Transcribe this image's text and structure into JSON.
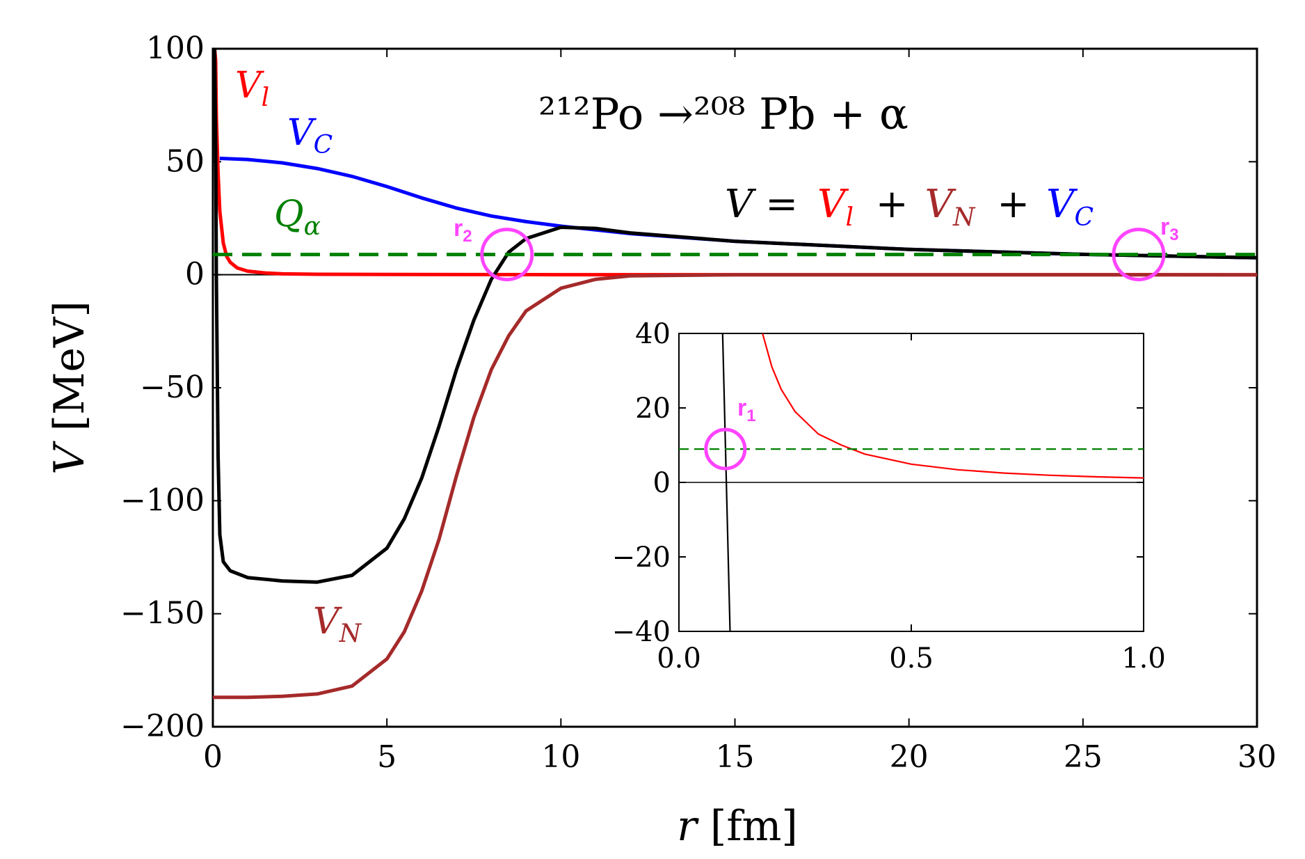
{
  "chart_data": {
    "type": "line",
    "title": "²¹²Po →²⁰⁸ Pb + α",
    "xlabel": "r [fm]",
    "ylabel": "V [MeV]",
    "xlim": [
      0,
      30
    ],
    "ylim": [
      -200,
      100
    ],
    "xticks": [
      0,
      5,
      10,
      15,
      20,
      25,
      30
    ],
    "yticks": [
      100,
      50,
      0,
      -50,
      -100,
      -150,
      -200
    ],
    "xtick_labels": [
      "0",
      "5",
      "10",
      "15",
      "20",
      "25",
      "30"
    ],
    "ytick_labels": [
      "100",
      "50",
      "0",
      "−50",
      "−100",
      "−150",
      "−200"
    ],
    "equation": {
      "lhs": "V =",
      "terms": [
        {
          "symbol": "V",
          "sub": "l",
          "color": "#ff0000"
        },
        {
          "symbol": "V",
          "sub": "N",
          "color": "#a52a2a"
        },
        {
          "symbol": "V",
          "sub": "C",
          "color": "#0000ff"
        }
      ],
      "plus": "+"
    },
    "series": [
      {
        "name": "V_l",
        "label": "V",
        "sub": "l",
        "color": "#ff0000",
        "x": [
          0.05,
          0.08,
          0.1,
          0.15,
          0.2,
          0.3,
          0.4,
          0.5,
          0.7,
          1.0,
          1.5,
          2,
          3,
          5,
          10,
          20,
          30
        ],
        "y": [
          100,
          95,
          70,
          45,
          28,
          14,
          8,
          5.5,
          3,
          1.6,
          0.8,
          0.4,
          0.2,
          0.1,
          0.03,
          0.01,
          0
        ]
      },
      {
        "name": "V_C",
        "label": "V",
        "sub": "C",
        "color": "#0000ff",
        "x": [
          0.2,
          1,
          2,
          3,
          4,
          5,
          6,
          7,
          8,
          9,
          10,
          12,
          15,
          20,
          25,
          30
        ],
        "y": [
          51.5,
          51,
          49.5,
          47,
          43.5,
          39,
          34,
          29.5,
          26,
          23.5,
          21.5,
          18.2,
          14.8,
          11.2,
          9.0,
          7.5
        ]
      },
      {
        "name": "V_N",
        "label": "V",
        "sub": "N",
        "color": "#a52a2a",
        "x": [
          0,
          1,
          2,
          3,
          4,
          5,
          5.5,
          6,
          6.5,
          7,
          7.5,
          8,
          8.5,
          9,
          10,
          11,
          12,
          15,
          30
        ],
        "y": [
          -187,
          -187,
          -186.5,
          -185.5,
          -182,
          -170,
          -158,
          -140,
          -117,
          -89,
          -63,
          -42,
          -27,
          -16,
          -6,
          -2,
          -0.5,
          0,
          0
        ]
      },
      {
        "name": "V",
        "label": "V",
        "sub": "",
        "color": "#000000",
        "x": [
          0.05,
          0.08,
          0.1,
          0.15,
          0.2,
          0.3,
          0.5,
          1,
          2,
          3,
          4,
          5,
          5.5,
          6,
          6.5,
          7,
          7.5,
          8,
          8.5,
          9,
          10,
          11,
          12,
          15,
          20,
          25,
          30
        ],
        "y": [
          100,
          60,
          0,
          -80,
          -115,
          -127,
          -131,
          -134,
          -135.5,
          -136,
          -133,
          -121,
          -108,
          -90,
          -67,
          -42,
          -20,
          -2,
          10,
          16,
          21,
          20.5,
          18.5,
          14.8,
          11.2,
          9.0,
          7.5
        ]
      },
      {
        "name": "Q_alpha",
        "label": "Q",
        "sub": "α",
        "color": "#008000",
        "style": "dashed",
        "x": [
          0,
          30
        ],
        "y": [
          8.95,
          8.95
        ]
      }
    ],
    "zero_line": 0,
    "markers": [
      {
        "name": "r2",
        "label": "r",
        "sub": "2",
        "x": 8.45,
        "y": 8.95,
        "color": "#ff44ff"
      },
      {
        "name": "r3",
        "label": "r",
        "sub": "3",
        "x": 26.6,
        "y": 8.95,
        "color": "#ff44ff"
      }
    ],
    "inset": {
      "xlim": [
        0,
        1
      ],
      "ylim": [
        -40,
        40
      ],
      "xticks": [
        0,
        0.5,
        1
      ],
      "yticks": [
        40,
        20,
        0,
        -20,
        -40
      ],
      "xtick_labels": [
        "0.0",
        "0.5",
        "1.0"
      ],
      "ytick_labels": [
        "40",
        "20",
        "0",
        "−20",
        "−40"
      ],
      "series": [
        {
          "name": "V_l",
          "color": "#ff0000",
          "x": [
            0.18,
            0.2,
            0.22,
            0.25,
            0.3,
            0.35,
            0.4,
            0.5,
            0.6,
            0.7,
            0.8,
            0.9,
            1.0
          ],
          "y": [
            40,
            31,
            25,
            19,
            13,
            10,
            7.6,
            4.9,
            3.4,
            2.5,
            1.9,
            1.5,
            1.2
          ]
        },
        {
          "name": "V",
          "color": "#000000",
          "x": [
            0.094,
            0.11
          ],
          "y": [
            40,
            -40
          ]
        },
        {
          "name": "Q_alpha",
          "color": "#008000",
          "style": "dashed",
          "x": [
            0,
            1
          ],
          "y": [
            8.95,
            8.95
          ]
        }
      ],
      "markers": [
        {
          "name": "r1",
          "label": "r",
          "sub": "1",
          "x": 0.1,
          "y": 8.95,
          "color": "#ff44ff"
        }
      ]
    }
  }
}
